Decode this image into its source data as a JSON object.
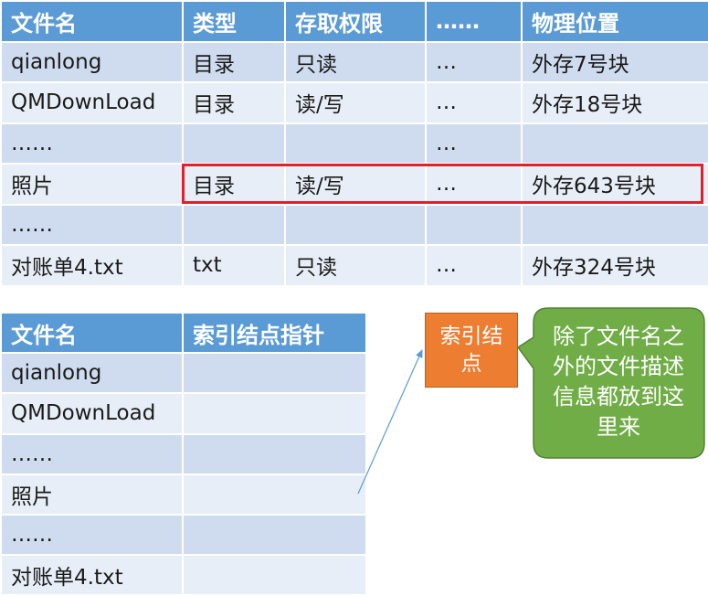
{
  "fcb_table": {
    "headers": [
      "文件名",
      "类型",
      "存取权限",
      "……",
      "物理位置"
    ],
    "rows": [
      [
        "qianlong",
        "目录",
        "只读",
        "…",
        "外存7号块"
      ],
      [
        "QMDownLoad",
        "目录",
        "读/写",
        "…",
        "外存18号块"
      ],
      [
        "……",
        "",
        "",
        "…",
        ""
      ],
      [
        "照片",
        "目录",
        "读/写",
        "…",
        "外存643号块"
      ],
      [
        "……",
        "",
        "",
        "",
        ""
      ],
      [
        "对账单4.txt",
        "txt",
        "只读",
        "…",
        "外存324号块"
      ]
    ]
  },
  "index_table": {
    "headers": [
      "文件名",
      "索引结点指针"
    ],
    "rows": [
      [
        "qianlong",
        ""
      ],
      [
        "QMDownLoad",
        ""
      ],
      [
        "……",
        ""
      ],
      [
        "照片",
        ""
      ],
      [
        "……",
        ""
      ],
      [
        "对账单4.txt",
        ""
      ]
    ]
  },
  "index_node": {
    "label": "索引结点"
  },
  "callout": {
    "text": "除了文件名之外的文件描述信息都放到这里来"
  },
  "colors": {
    "header_blue": "#5b9bd5",
    "row_dark": "#cfdcef",
    "row_light": "#e8eef7",
    "highlight_red": "#e0202a",
    "node_orange": "#ed7d31",
    "callout_green": "#70ad47"
  }
}
